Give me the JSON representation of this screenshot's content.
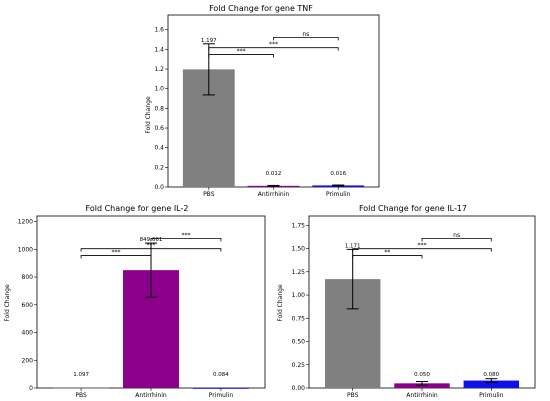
{
  "colors": {
    "PBS": "#808080",
    "Antirrhinin": "#8B008B",
    "Primulin": "#1010e8"
  },
  "chart_data": [
    {
      "id": "tnf",
      "type": "bar",
      "title": "Fold Change for gene TNF",
      "ylabel": "Fold Change",
      "categories": [
        "PBS",
        "Antirrhinin",
        "Primulin"
      ],
      "values": [
        1.197,
        0.012,
        0.016
      ],
      "value_labels": [
        "1.197",
        "0.012",
        "0.016"
      ],
      "errors": [
        0.26,
        0.004,
        0.004
      ],
      "ylim": [
        0,
        1.75
      ],
      "yticks": [
        0.0,
        0.2,
        0.4,
        0.6,
        0.8,
        1.0,
        1.2,
        1.4,
        1.6
      ],
      "ytick_labels": [
        "0.0",
        "0.2",
        "0.4",
        "0.6",
        "0.8",
        "1.0",
        "1.2",
        "1.4",
        "1.6"
      ],
      "significance": [
        {
          "from": 0,
          "to": 1,
          "label": "***"
        },
        {
          "from": 0,
          "to": 2,
          "label": "***"
        },
        {
          "from": 1,
          "to": 2,
          "label": "ns"
        }
      ]
    },
    {
      "id": "il2",
      "type": "bar",
      "title": "Fold Change for gene IL-2",
      "ylabel": "Fold Change",
      "categories": [
        "PBS",
        "Antirrhinin",
        "Primulin"
      ],
      "values": [
        1.097,
        849.661,
        0.084
      ],
      "value_labels": [
        "1.097",
        "849.661",
        "0.084"
      ],
      "errors": [
        0,
        195,
        0
      ],
      "ylim": [
        0,
        1240
      ],
      "yticks": [
        0,
        200,
        400,
        600,
        800,
        1000,
        1200
      ],
      "ytick_labels": [
        "0",
        "200",
        "400",
        "600",
        "800",
        "1000",
        "1200"
      ],
      "significance": [
        {
          "from": 0,
          "to": 1,
          "label": "***"
        },
        {
          "from": 0,
          "to": 2,
          "label": "***"
        },
        {
          "from": 1,
          "to": 2,
          "label": "***"
        }
      ]
    },
    {
      "id": "il17",
      "type": "bar",
      "title": "Fold Change for gene IL-17",
      "ylabel": "Fold Change",
      "categories": [
        "PBS",
        "Antirrhinin",
        "Primulin"
      ],
      "values": [
        1.171,
        0.05,
        0.08
      ],
      "value_labels": [
        "1.171",
        "0.050",
        "0.080"
      ],
      "errors": [
        0.32,
        0.02,
        0.02
      ],
      "ylim": [
        0,
        1.85
      ],
      "yticks": [
        0.0,
        0.25,
        0.5,
        0.75,
        1.0,
        1.25,
        1.5,
        1.75
      ],
      "ytick_labels": [
        "0.00",
        "0.25",
        "0.50",
        "0.75",
        "1.00",
        "1.25",
        "1.50",
        "1.75"
      ],
      "significance": [
        {
          "from": 0,
          "to": 1,
          "label": "**"
        },
        {
          "from": 0,
          "to": 2,
          "label": "***"
        },
        {
          "from": 1,
          "to": 2,
          "label": "ns"
        }
      ]
    }
  ]
}
